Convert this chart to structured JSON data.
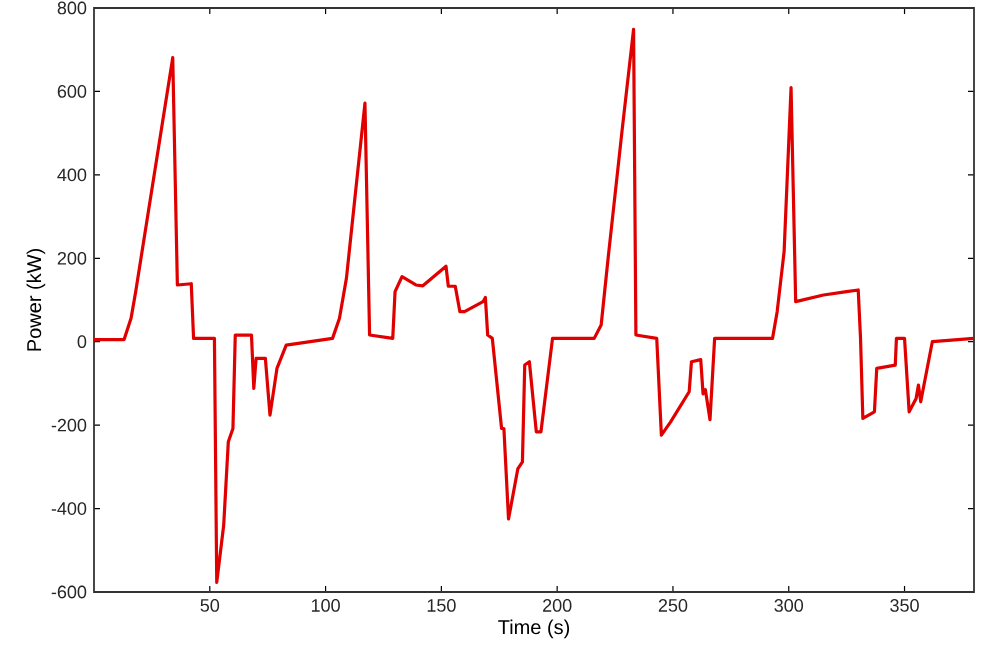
{
  "chart_data": {
    "type": "line",
    "xlabel": "Time (s)",
    "ylabel": "Power (kW)",
    "xlim": [
      0,
      380
    ],
    "ylim": [
      -600,
      800
    ],
    "xticks": [
      50,
      100,
      150,
      200,
      250,
      300,
      350
    ],
    "yticks": [
      -600,
      -400,
      -200,
      0,
      200,
      400,
      600,
      800
    ],
    "marker": "none",
    "line_style": "solid",
    "series": [
      {
        "color": "#e00000",
        "x": [
          0,
          13,
          16,
          18,
          34,
          36,
          42,
          43,
          52,
          53,
          56,
          58,
          60,
          61,
          68,
          69,
          70,
          74,
          76,
          79,
          83,
          103,
          106,
          109,
          117,
          119,
          129,
          130,
          133,
          139,
          142,
          152,
          153,
          156,
          158,
          160,
          168,
          169,
          170,
          172,
          176,
          177,
          179,
          183,
          185,
          186,
          188,
          191,
          193,
          198,
          216,
          219,
          222,
          228,
          233,
          234,
          243,
          245,
          249,
          257,
          258,
          262,
          263,
          264,
          266,
          268,
          293,
          295,
          298,
          301,
          303,
          315,
          325,
          330,
          331,
          332,
          337,
          338,
          346,
          346.5,
          350,
          352,
          355,
          356,
          357,
          362,
          380
        ],
        "values": [
          5,
          5,
          56,
          120,
          681,
          136,
          139,
          8,
          8,
          -577,
          -440,
          -240,
          -208,
          16,
          16,
          -112,
          -40,
          -40,
          -176,
          -64,
          -8,
          8,
          56,
          152,
          572,
          16,
          8,
          120,
          156,
          136,
          134,
          181,
          133,
          133,
          72,
          72,
          96,
          106,
          16,
          8,
          -208,
          -208,
          -425,
          -305,
          -288,
          -56,
          -48,
          -216,
          -216,
          8,
          8,
          40,
          200,
          505,
          749,
          16,
          8,
          -224,
          -192,
          -120,
          -48,
          -43,
          -125,
          -115,
          -187,
          8,
          8,
          72,
          216,
          609,
          96,
          112,
          120,
          124,
          8,
          -184,
          -168,
          -64,
          -56,
          8,
          8,
          -168,
          -136,
          -104,
          -144,
          0,
          8
        ]
      }
    ]
  }
}
